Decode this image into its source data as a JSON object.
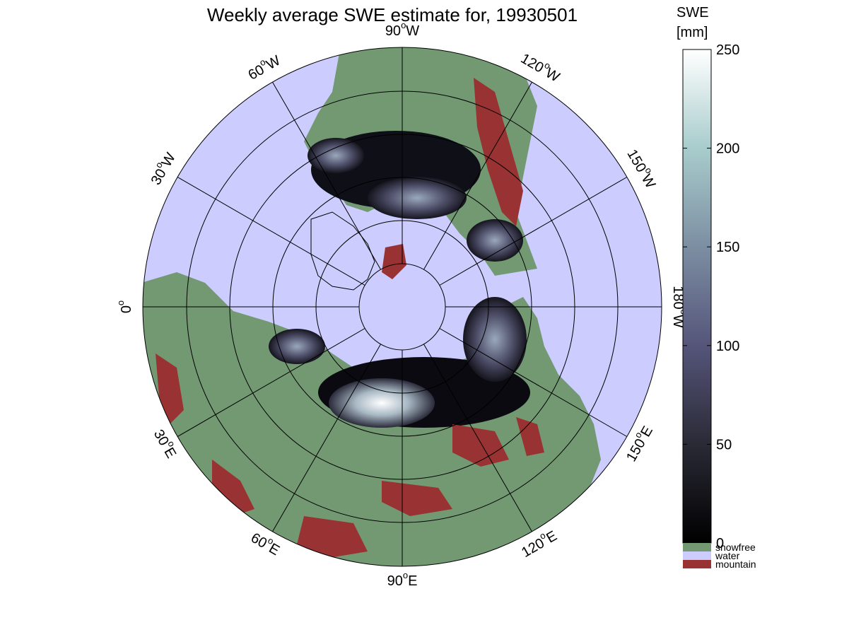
{
  "title": "Weekly average SWE estimate for, 19930501",
  "colors": {
    "water": "#ccccff",
    "snowfree": "#739973",
    "mountain": "#993333",
    "grid": "#000000"
  },
  "longitude_labels": [
    {
      "deg": "90",
      "dir": "W"
    },
    {
      "deg": "120",
      "dir": "W"
    },
    {
      "deg": "150",
      "dir": "W"
    },
    {
      "deg": "180",
      "dir": "W"
    },
    {
      "deg": "150",
      "dir": "E"
    },
    {
      "deg": "120",
      "dir": "E"
    },
    {
      "deg": "90",
      "dir": "E"
    },
    {
      "deg": "60",
      "dir": "E"
    },
    {
      "deg": "30",
      "dir": "E"
    },
    {
      "deg": "0",
      "dir": ""
    },
    {
      "deg": "30",
      "dir": "W"
    },
    {
      "deg": "60",
      "dir": "W"
    }
  ],
  "colorbar": {
    "title_line1": "SWE",
    "title_line2": "[mm]",
    "ticks": [
      "0",
      "50",
      "100",
      "150",
      "200",
      "250"
    ],
    "min": 0,
    "max": 250,
    "legend": [
      {
        "label": "snowfree",
        "color": "#739973"
      },
      {
        "label": "water",
        "color": "#ccccff"
      },
      {
        "label": "mountain",
        "color": "#993333"
      }
    ]
  }
}
